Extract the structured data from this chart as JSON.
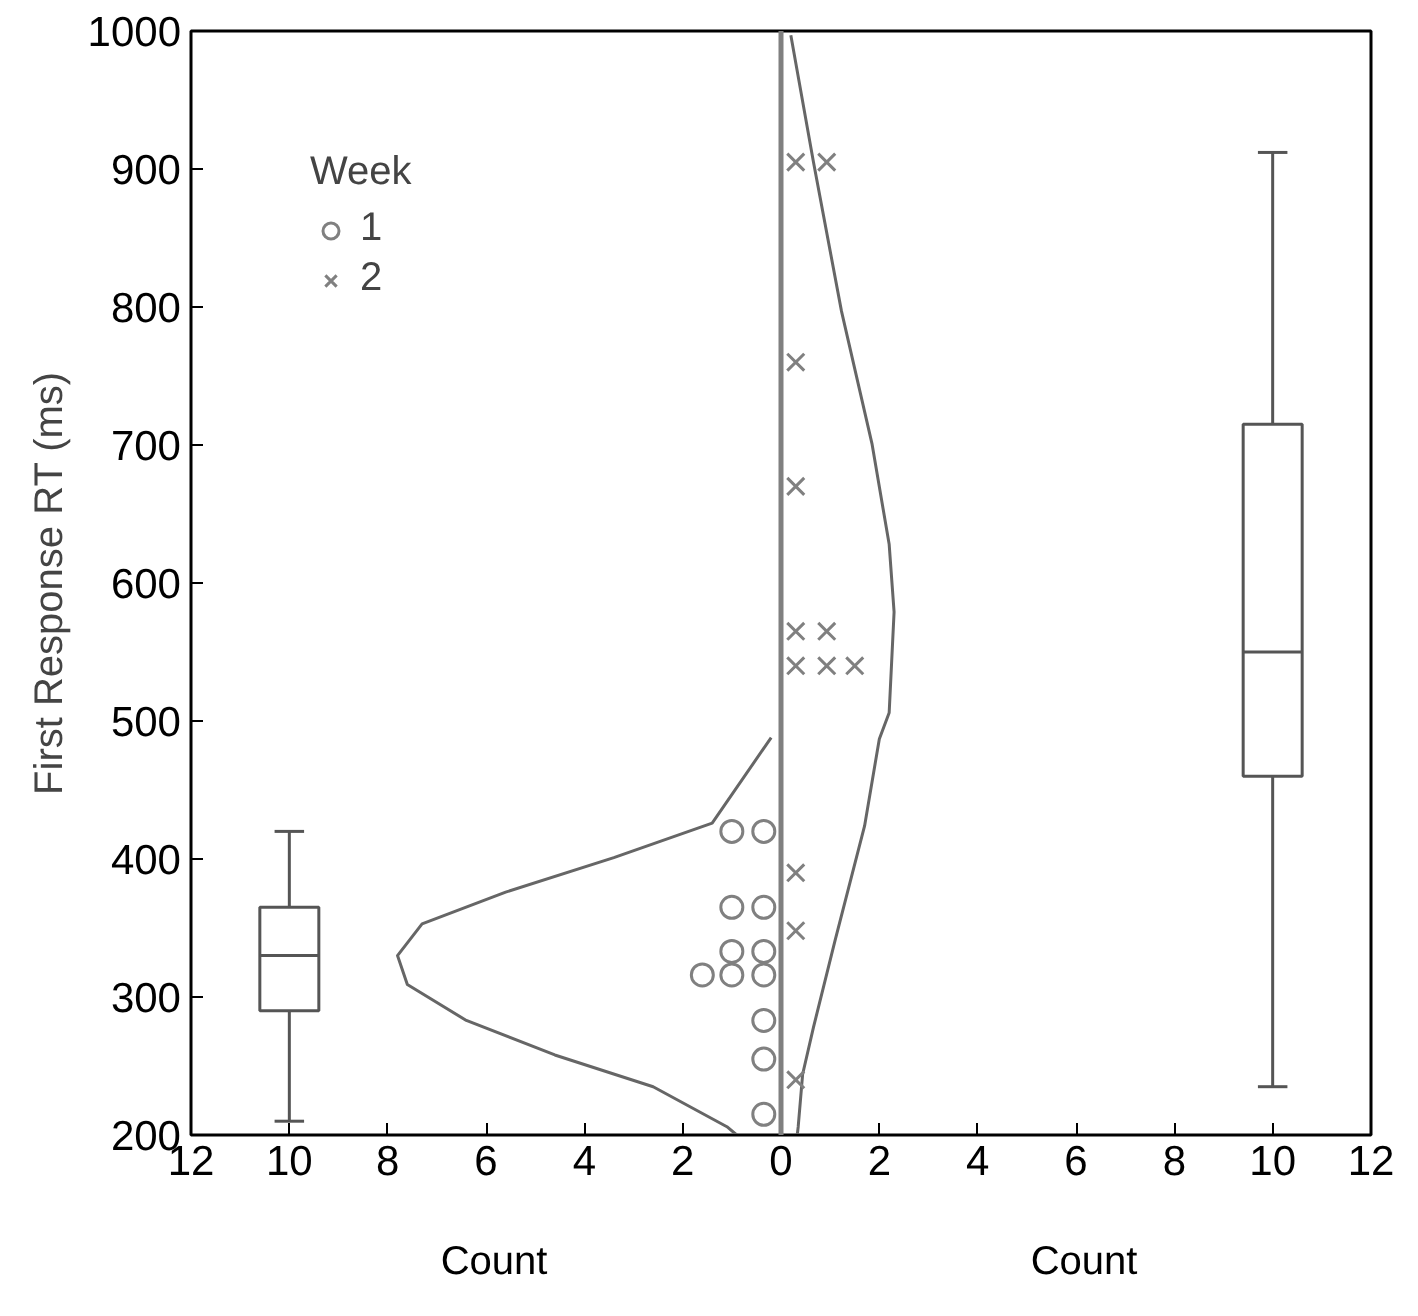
{
  "chart_data": {
    "type": "scatter",
    "xlabel": "Count",
    "ylabel": "First Response RT (ms)",
    "legend_title": "Week",
    "legend": "top left",
    "xlim": [
      -12,
      12
    ],
    "ylim": [
      200,
      1000
    ],
    "xticks": [
      {
        "value": -12,
        "label": "12"
      },
      {
        "value": -10,
        "label": "10"
      },
      {
        "value": -8,
        "label": "8"
      },
      {
        "value": -6,
        "label": "6"
      },
      {
        "value": -4,
        "label": "4"
      },
      {
        "value": -2,
        "label": "2"
      },
      0,
      2,
      4,
      6,
      8,
      10,
      12
    ],
    "yticks": [
      200,
      300,
      400,
      500,
      600,
      700,
      800,
      900,
      1000
    ],
    "ref_lines": [
      {
        "axis": "x",
        "value": 0,
        "color": "#808080"
      }
    ],
    "series": [
      {
        "type": "line",
        "color": "#666666",
        "line_style": "solid",
        "x": [
          -0.2,
          -1.4,
          -3.4,
          -5.6,
          -7.3,
          -7.8,
          -7.6,
          -6.4,
          -4.6,
          -2.6,
          -1.1,
          -0.9
        ],
        "values": [
          488,
          426,
          401,
          376,
          353,
          330,
          309,
          283,
          258,
          235,
          206,
          200
        ]
      },
      {
        "type": "line",
        "color": "#666666",
        "line_style": "solid",
        "x": [
          0.2,
          0.66,
          1.23,
          1.85,
          2.2,
          2.3,
          2.2,
          2.0,
          1.7,
          1.1,
          0.66,
          0.44,
          0.35,
          0.33
        ],
        "values": [
          997,
          905,
          797,
          701,
          628,
          579,
          506,
          487,
          424,
          341,
          278,
          244,
          206,
          200
        ]
      },
      {
        "name": "1",
        "marker": "circle",
        "color": "#808080",
        "x": [
          -0.35,
          -1.0,
          -0.35,
          -1.0,
          -0.35,
          -1.0,
          -0.35,
          -1.0,
          -1.6,
          -0.35,
          -0.35,
          -0.35
        ],
        "values": [
          420,
          420,
          365,
          365,
          333,
          333,
          316,
          316,
          316,
          283,
          255,
          215
        ]
      },
      {
        "name": "2",
        "marker": "cross",
        "color": "#808080",
        "x": [
          0.3,
          0.93,
          0.3,
          0.3,
          0.3,
          0.93,
          0.3,
          0.93,
          1.5,
          0.3,
          0.3,
          0.3
        ],
        "values": [
          905,
          905,
          760,
          670,
          565,
          565,
          540,
          540,
          540,
          390,
          348,
          240
        ]
      },
      {
        "type": "box",
        "color": "#555555",
        "x": [
          -10
        ],
        "boxes": [
          {
            "low": 210,
            "q1": 290,
            "median": 330,
            "q3": 365,
            "high": 420
          }
        ]
      },
      {
        "type": "box",
        "color": "#555555",
        "x": [
          10
        ],
        "boxes": [
          {
            "low": 235,
            "q1": 460,
            "median": 550,
            "q3": 715,
            "high": 912
          }
        ]
      }
    ]
  }
}
